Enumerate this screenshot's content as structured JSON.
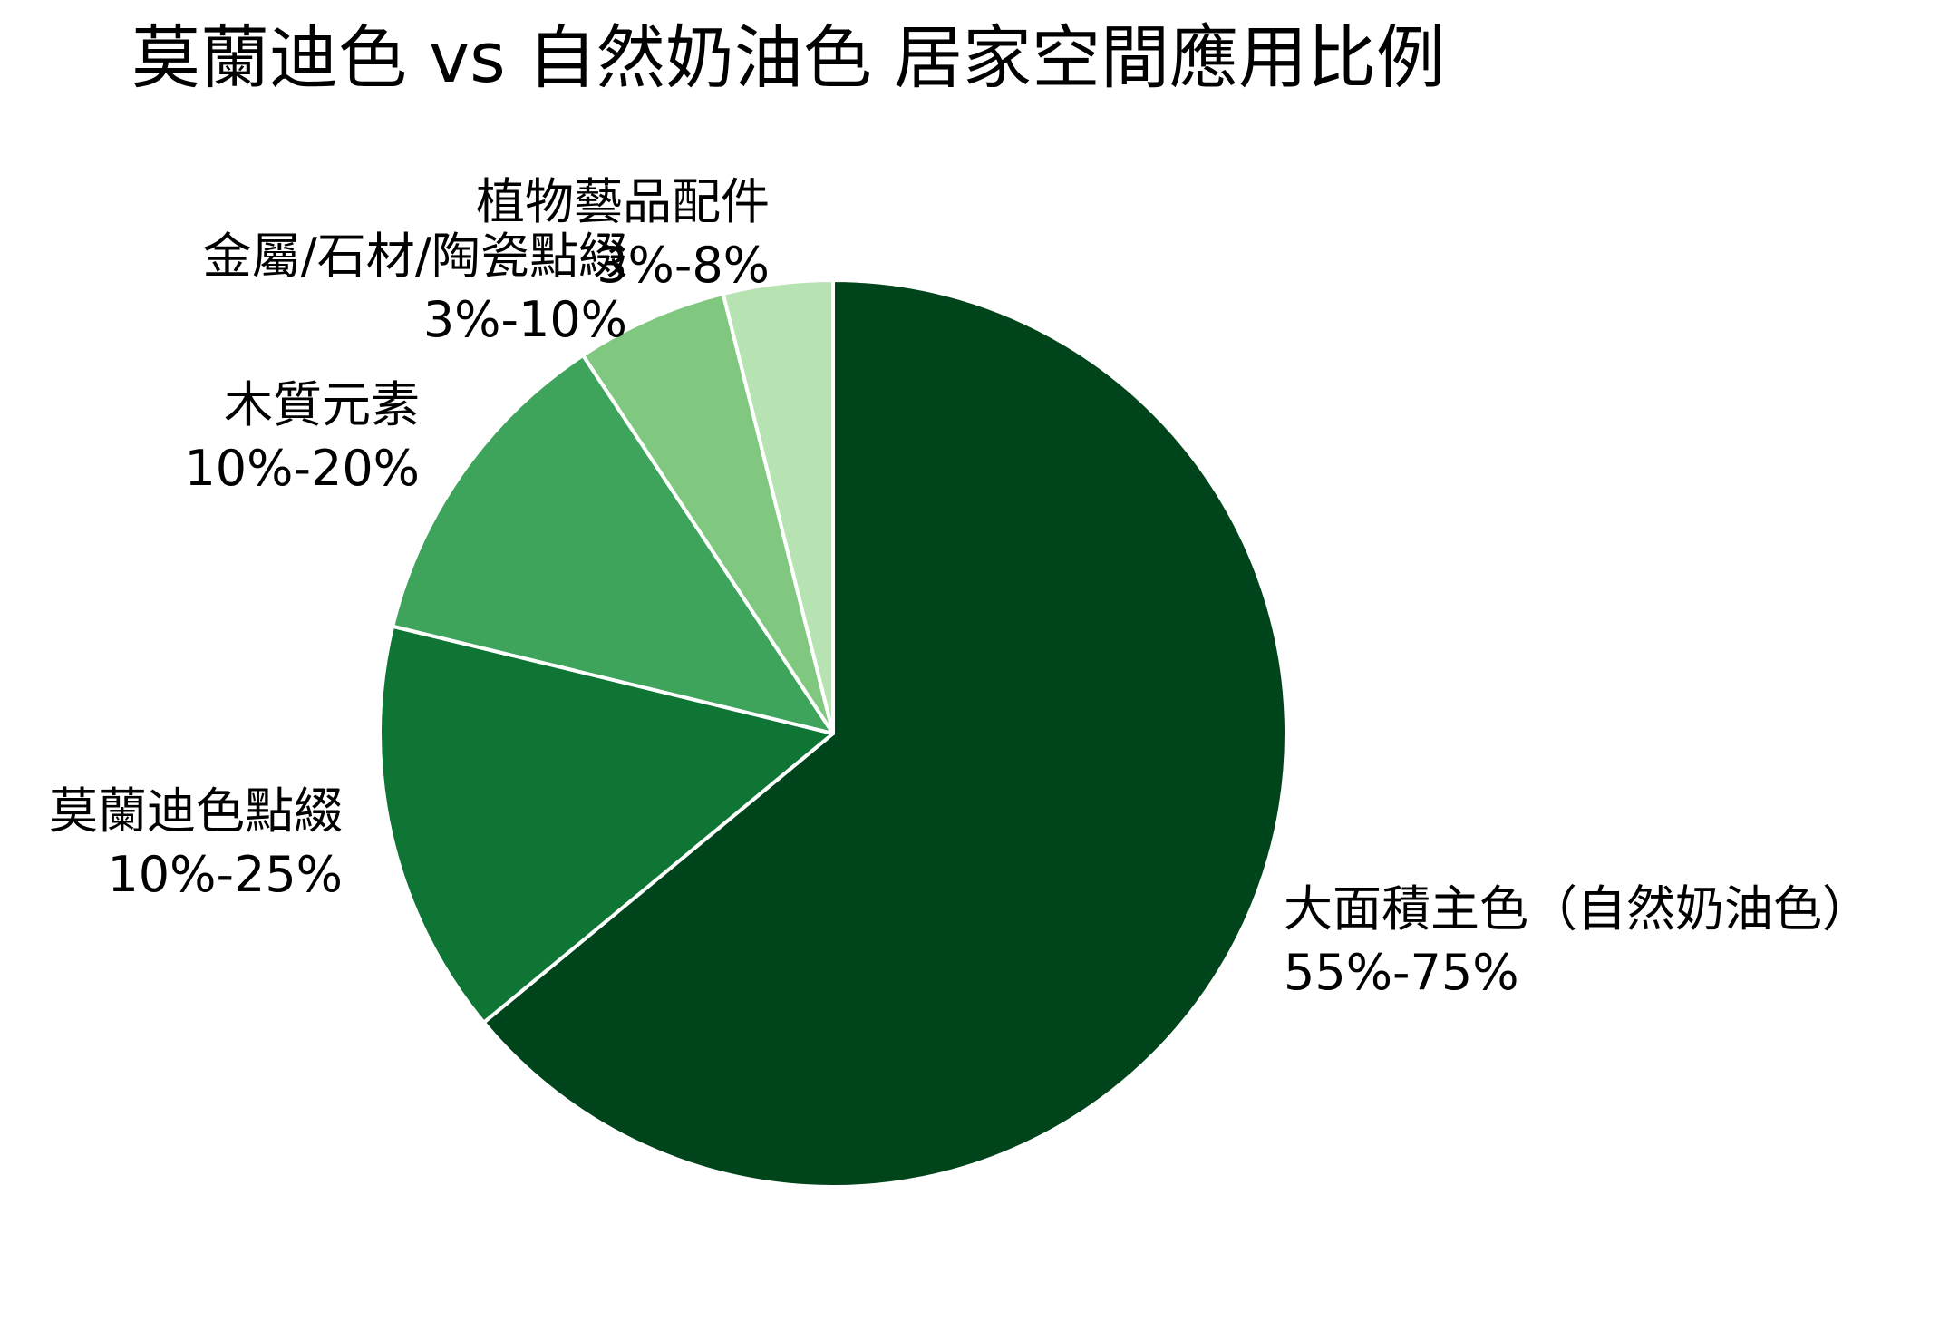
{
  "title": "莫蘭迪色 vs 自然奶油色 居家空間應用比例",
  "chart_data": {
    "type": "pie",
    "title": "莫蘭迪色 vs 自然奶油色 居家空間應用比例",
    "start_angle": "12 o'clock",
    "direction": "clockwise",
    "categories": [
      "大面積主色（自然奶油色）",
      "莫蘭迪色點綴",
      "木質元素",
      "金屬/石材/陶瓷點綴",
      "植物藝品配件"
    ],
    "range_labels": [
      "55%-75%",
      "10%-25%",
      "10%-20%",
      "3%-10%",
      "3%-8%"
    ],
    "values": [
      64.0,
      14.8,
      11.9,
      5.4,
      3.9
    ],
    "colors": [
      "#00441b",
      "#0f7535",
      "#3fa45b",
      "#80c880",
      "#b7e2b1"
    ],
    "legend": "none (labels placed outside slices)"
  },
  "labels": [
    {
      "name": "大面積主色（自然奶油色）",
      "range": "55%-75%"
    },
    {
      "name": "莫蘭迪色點綴",
      "range": "10%-25%"
    },
    {
      "name": "木質元素",
      "range": "10%-20%"
    },
    {
      "name": "金屬/石材/陶瓷點綴",
      "range": "3%-10%"
    },
    {
      "name": "植物藝品配件",
      "range": "3%-8%"
    }
  ]
}
